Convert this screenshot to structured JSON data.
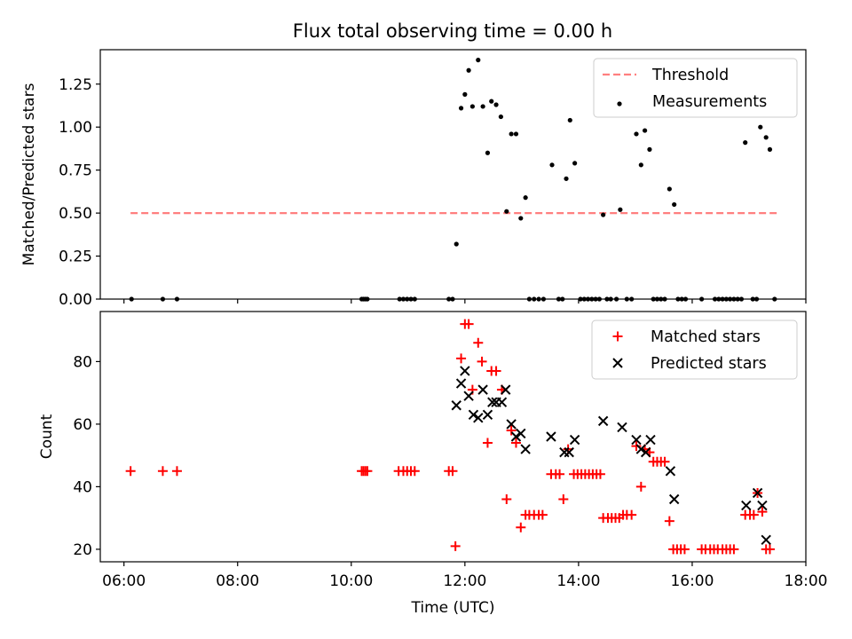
{
  "title": "Flux total observing time = 0.00 h",
  "colors": {
    "threshold": "#ff7f7f",
    "measurements": "#000000",
    "matched": "#ff0000",
    "predicted": "#000000"
  },
  "chart_data": [
    {
      "type": "scatter",
      "title": "Flux total observing time = 0.00 h",
      "xlabel": "",
      "ylabel": "Matched/Predicted stars",
      "xlim": [
        "05:35",
        "18:00"
      ],
      "ylim": [
        0,
        1.45
      ],
      "x_ticks": [
        "06:00",
        "08:00",
        "10:00",
        "12:00",
        "14:00",
        "16:00",
        "18:00"
      ],
      "y_ticks": [
        "0.00",
        "0.25",
        "0.50",
        "0.75",
        "1.00",
        "1.25"
      ],
      "legend": {
        "position": "top-right",
        "entries": [
          "Threshold",
          "Measurements"
        ]
      },
      "threshold": {
        "name": "Threshold",
        "y": 0.5,
        "x_start": "06:07",
        "x_end": "17:30",
        "style": "dashed"
      },
      "series": [
        {
          "name": "Measurements",
          "marker": "dot",
          "points": [
            [
              "06:08",
              0
            ],
            [
              "06:41",
              0
            ],
            [
              "06:56",
              0
            ],
            [
              "10:11",
              0
            ],
            [
              "10:13",
              0
            ],
            [
              "10:15",
              0
            ],
            [
              "10:17",
              0
            ],
            [
              "10:51",
              0
            ],
            [
              "10:55",
              0
            ],
            [
              "10:59",
              0
            ],
            [
              "11:03",
              0
            ],
            [
              "11:07",
              0
            ],
            [
              "11:43",
              0
            ],
            [
              "11:47",
              0
            ],
            [
              "11:51",
              0.32
            ],
            [
              "11:56",
              1.11
            ],
            [
              "12:00",
              1.19
            ],
            [
              "12:04",
              1.33
            ],
            [
              "12:08",
              1.12
            ],
            [
              "12:14",
              1.39
            ],
            [
              "12:19",
              1.12
            ],
            [
              "12:24",
              0.85
            ],
            [
              "12:28",
              1.15
            ],
            [
              "12:33",
              1.13
            ],
            [
              "12:38",
              1.06
            ],
            [
              "12:44",
              0.51
            ],
            [
              "12:49",
              0.96
            ],
            [
              "12:54",
              0.96
            ],
            [
              "12:59",
              0.47
            ],
            [
              "13:04",
              0.59
            ],
            [
              "13:08",
              0
            ],
            [
              "13:13",
              0
            ],
            [
              "13:18",
              0
            ],
            [
              "13:23",
              0
            ],
            [
              "13:32",
              0.78
            ],
            [
              "13:39",
              0
            ],
            [
              "13:43",
              0
            ],
            [
              "13:47",
              0.7
            ],
            [
              "13:51",
              1.04
            ],
            [
              "13:56",
              0.79
            ],
            [
              "14:02",
              0
            ],
            [
              "14:06",
              0
            ],
            [
              "14:10",
              0
            ],
            [
              "14:14",
              0
            ],
            [
              "14:18",
              0
            ],
            [
              "14:22",
              0
            ],
            [
              "14:26",
              0.49
            ],
            [
              "14:30",
              0
            ],
            [
              "14:34",
              0
            ],
            [
              "14:40",
              0
            ],
            [
              "14:44",
              0.52
            ],
            [
              "14:51",
              0
            ],
            [
              "14:56",
              0
            ],
            [
              "15:01",
              0.96
            ],
            [
              "15:06",
              0.78
            ],
            [
              "15:10",
              0.98
            ],
            [
              "15:15",
              0.87
            ],
            [
              "15:19",
              0
            ],
            [
              "15:23",
              0
            ],
            [
              "15:27",
              0
            ],
            [
              "15:31",
              0
            ],
            [
              "15:36",
              0.64
            ],
            [
              "15:41",
              0.55
            ],
            [
              "15:45",
              0
            ],
            [
              "15:49",
              0
            ],
            [
              "15:53",
              0
            ],
            [
              "16:10",
              0
            ],
            [
              "16:24",
              0
            ],
            [
              "16:28",
              0
            ],
            [
              "16:32",
              0
            ],
            [
              "16:36",
              0
            ],
            [
              "16:40",
              0
            ],
            [
              "16:44",
              0
            ],
            [
              "16:48",
              0
            ],
            [
              "16:52",
              0
            ],
            [
              "16:56",
              0.91
            ],
            [
              "17:04",
              0
            ],
            [
              "17:08",
              0
            ],
            [
              "17:12",
              1.0
            ],
            [
              "17:18",
              0.94
            ],
            [
              "17:22",
              0.87
            ],
            [
              "17:27",
              0
            ]
          ]
        }
      ]
    },
    {
      "type": "scatter",
      "xlabel": "Time (UTC)",
      "ylabel": "Count",
      "xlim": [
        "05:35",
        "18:00"
      ],
      "ylim": [
        16,
        96
      ],
      "x_ticks": [
        "06:00",
        "08:00",
        "10:00",
        "12:00",
        "14:00",
        "16:00",
        "18:00"
      ],
      "y_ticks": [
        "20",
        "40",
        "60",
        "80"
      ],
      "legend": {
        "position": "top-right",
        "entries": [
          "Matched stars",
          "Predicted stars"
        ]
      },
      "series": [
        {
          "name": "Matched stars",
          "marker": "plus",
          "points": [
            [
              "06:07",
              45
            ],
            [
              "06:41",
              45
            ],
            [
              "06:56",
              45
            ],
            [
              "10:11",
              45
            ],
            [
              "10:13",
              45
            ],
            [
              "10:15",
              45
            ],
            [
              "10:17",
              45
            ],
            [
              "10:50",
              45
            ],
            [
              "10:55",
              45
            ],
            [
              "10:59",
              45
            ],
            [
              "11:03",
              45
            ],
            [
              "11:07",
              45
            ],
            [
              "11:43",
              45
            ],
            [
              "11:47",
              45
            ],
            [
              "11:50",
              21
            ],
            [
              "11:56",
              81
            ],
            [
              "12:00",
              92
            ],
            [
              "12:04",
              92
            ],
            [
              "12:08",
              71
            ],
            [
              "12:14",
              86
            ],
            [
              "12:18",
              80
            ],
            [
              "12:24",
              54
            ],
            [
              "12:28",
              77
            ],
            [
              "12:33",
              77
            ],
            [
              "12:39",
              71
            ],
            [
              "12:44",
              36
            ],
            [
              "12:49",
              58
            ],
            [
              "12:54",
              54
            ],
            [
              "12:59",
              27
            ],
            [
              "13:04",
              31
            ],
            [
              "13:08",
              31
            ],
            [
              "13:13",
              31
            ],
            [
              "13:18",
              31
            ],
            [
              "13:22",
              31
            ],
            [
              "13:31",
              44
            ],
            [
              "13:36",
              44
            ],
            [
              "13:40",
              44
            ],
            [
              "13:44",
              36
            ],
            [
              "13:49",
              52
            ],
            [
              "13:55",
              44
            ],
            [
              "13:59",
              44
            ],
            [
              "14:03",
              44
            ],
            [
              "14:07",
              44
            ],
            [
              "14:11",
              44
            ],
            [
              "14:15",
              44
            ],
            [
              "14:19",
              44
            ],
            [
              "14:23",
              44
            ],
            [
              "14:26",
              30
            ],
            [
              "14:31",
              30
            ],
            [
              "14:35",
              30
            ],
            [
              "14:39",
              30
            ],
            [
              "14:43",
              30
            ],
            [
              "14:47",
              31
            ],
            [
              "14:51",
              31
            ],
            [
              "14:56",
              31
            ],
            [
              "15:01",
              53
            ],
            [
              "15:06",
              40
            ],
            [
              "15:10",
              52
            ],
            [
              "15:15",
              51
            ],
            [
              "15:19",
              48
            ],
            [
              "15:23",
              48
            ],
            [
              "15:27",
              48
            ],
            [
              "15:31",
              48
            ],
            [
              "15:36",
              29
            ],
            [
              "15:40",
              20
            ],
            [
              "15:44",
              20
            ],
            [
              "15:48",
              20
            ],
            [
              "15:52",
              20
            ],
            [
              "16:10",
              20
            ],
            [
              "16:14",
              20
            ],
            [
              "16:19",
              20
            ],
            [
              "16:23",
              20
            ],
            [
              "16:27",
              20
            ],
            [
              "16:32",
              20
            ],
            [
              "16:36",
              20
            ],
            [
              "16:40",
              20
            ],
            [
              "16:44",
              20
            ],
            [
              "16:56",
              31
            ],
            [
              "17:01",
              31
            ],
            [
              "17:05",
              31
            ],
            [
              "17:09",
              38
            ],
            [
              "17:14",
              32
            ],
            [
              "17:18",
              20
            ],
            [
              "17:22",
              20
            ]
          ]
        },
        {
          "name": "Predicted stars",
          "marker": "x",
          "points": [
            [
              "11:51",
              66
            ],
            [
              "11:56",
              73
            ],
            [
              "12:00",
              77
            ],
            [
              "12:04",
              69
            ],
            [
              "12:09",
              63
            ],
            [
              "12:14",
              62
            ],
            [
              "12:19",
              71
            ],
            [
              "12:24",
              63
            ],
            [
              "12:29",
              67
            ],
            [
              "12:33",
              67
            ],
            [
              "12:39",
              67
            ],
            [
              "12:43",
              71
            ],
            [
              "12:49",
              60
            ],
            [
              "12:54",
              56
            ],
            [
              "12:59",
              57
            ],
            [
              "13:04",
              52
            ],
            [
              "13:31",
              56
            ],
            [
              "13:45",
              51
            ],
            [
              "13:50",
              51
            ],
            [
              "13:56",
              55
            ],
            [
              "14:26",
              61
            ],
            [
              "14:46",
              59
            ],
            [
              "15:01",
              55
            ],
            [
              "15:06",
              52
            ],
            [
              "15:11",
              51
            ],
            [
              "15:16",
              55
            ],
            [
              "15:37",
              45
            ],
            [
              "15:41",
              36
            ],
            [
              "16:57",
              34
            ],
            [
              "17:09",
              38
            ],
            [
              "17:14",
              34
            ],
            [
              "17:18",
              23
            ]
          ]
        }
      ]
    }
  ]
}
